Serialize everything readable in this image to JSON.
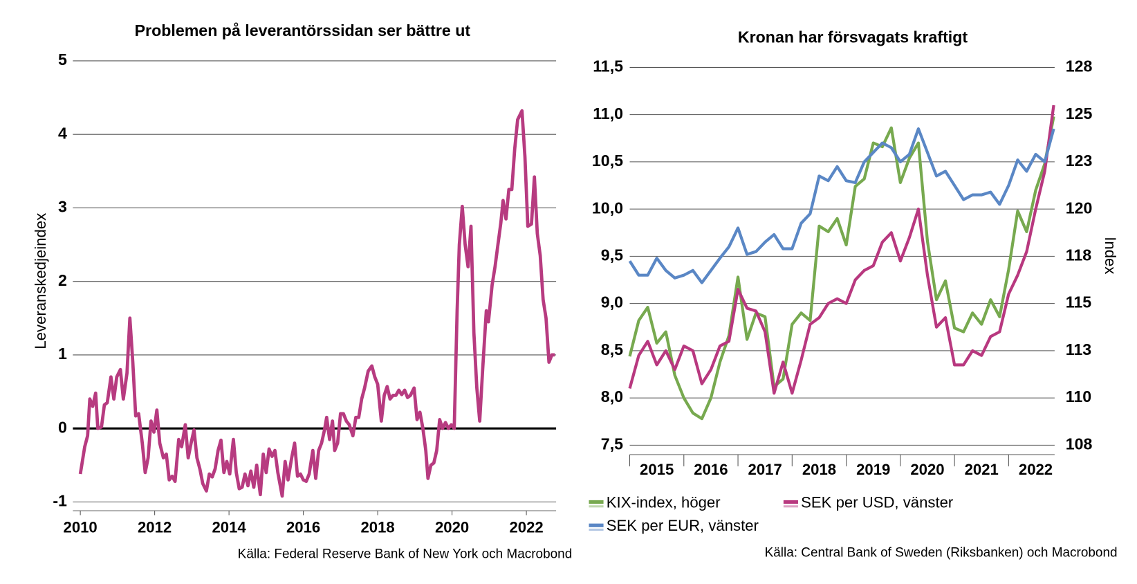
{
  "chart_data": [
    {
      "type": "line",
      "title": "Problemen på leverantörssidan ser bättre ut",
      "ylabel": "Leveranskedjeindex",
      "source": "Källa: Federal Reserve Bank of New York och Macrobond",
      "xlim": [
        2009.8,
        2022.8
      ],
      "xticks": [
        2010,
        2012,
        2014,
        2016,
        2018,
        2020,
        2022
      ],
      "ylim": [
        -1.12,
        5
      ],
      "yticks": [
        5,
        4,
        3,
        2,
        1,
        0,
        -1
      ],
      "grid": true,
      "color": "#b73b80",
      "x": [
        2010,
        2010.118,
        2010.196,
        2010.255,
        2010.333,
        2010.412,
        2010.471,
        2010.569,
        2010.647,
        2010.725,
        2010.824,
        2010.902,
        2010.98,
        2011.078,
        2011.157,
        2011.255,
        2011.333,
        2011.412,
        2011.49,
        2011.569,
        2011.667,
        2011.745,
        2011.824,
        2011.902,
        2011.98,
        2012.059,
        2012.137,
        2012.235,
        2012.314,
        2012.392,
        2012.471,
        2012.549,
        2012.647,
        2012.725,
        2012.824,
        2012.902,
        2012.98,
        2013.059,
        2013.137,
        2013.216,
        2013.294,
        2013.392,
        2013.471,
        2013.549,
        2013.627,
        2013.706,
        2013.784,
        2013.863,
        2013.941,
        2014.02,
        2014.118,
        2014.196,
        2014.275,
        2014.353,
        2014.431,
        2014.51,
        2014.588,
        2014.667,
        2014.745,
        2014.843,
        2014.922,
        2015,
        2015.078,
        2015.157,
        2015.235,
        2015.314,
        2015.431,
        2015.51,
        2015.588,
        2015.686,
        2015.765,
        2015.843,
        2015.922,
        2016,
        2016.078,
        2016.157,
        2016.255,
        2016.333,
        2016.412,
        2016.49,
        2016.569,
        2016.627,
        2016.706,
        2016.784,
        2016.843,
        2016.922,
        2017,
        2017.078,
        2017.157,
        2017.235,
        2017.333,
        2017.412,
        2017.49,
        2017.569,
        2017.647,
        2017.745,
        2017.843,
        2017.922,
        2018,
        2018.098,
        2018.176,
        2018.255,
        2018.333,
        2018.412,
        2018.49,
        2018.569,
        2018.647,
        2018.725,
        2018.804,
        2018.882,
        2018.98,
        2019.059,
        2019.137,
        2019.216,
        2019.294,
        2019.353,
        2019.431,
        2019.51,
        2019.588,
        2019.667,
        2019.745,
        2019.824,
        2019.902,
        2019.98,
        2020.059,
        2020.137,
        2020.196,
        2020.275,
        2020.353,
        2020.431,
        2020.51,
        2020.588,
        2020.667,
        2020.745,
        2020.824,
        2020.922,
        2020.98,
        2021.078,
        2021.157,
        2021.235,
        2021.314,
        2021.373,
        2021.451,
        2021.529,
        2021.608,
        2021.686,
        2021.765,
        2021.882,
        2021.961,
        2022.039,
        2022.137,
        2022.216,
        2022.294,
        2022.373,
        2022.451,
        2022.529,
        2022.608,
        2022.686,
        2022.765
      ],
      "values": [
        -0.62,
        -0.25,
        -0.1,
        0.4,
        0.3,
        0.48,
        0.0,
        0.02,
        0.32,
        0.35,
        0.7,
        0.4,
        0.7,
        0.8,
        0.4,
        0.75,
        1.5,
        0.9,
        0.17,
        0.2,
        -0.2,
        -0.6,
        -0.4,
        0.1,
        -0.05,
        0.25,
        -0.2,
        -0.4,
        -0.35,
        -0.7,
        -0.65,
        -0.72,
        -0.15,
        -0.25,
        0.05,
        -0.4,
        -0.2,
        -0.02,
        -0.4,
        -0.55,
        -0.75,
        -0.85,
        -0.62,
        -0.66,
        -0.55,
        -0.3,
        -0.16,
        -0.6,
        -0.45,
        -0.62,
        -0.15,
        -0.6,
        -0.82,
        -0.8,
        -0.62,
        -0.78,
        -0.58,
        -0.8,
        -0.5,
        -0.9,
        -0.35,
        -0.6,
        -0.28,
        -0.38,
        -0.3,
        -0.6,
        -0.92,
        -0.45,
        -0.7,
        -0.4,
        -0.2,
        -0.65,
        -0.62,
        -0.7,
        -0.72,
        -0.62,
        -0.3,
        -0.68,
        -0.3,
        -0.2,
        -0.02,
        0.15,
        -0.15,
        0.1,
        -0.3,
        -0.2,
        0.2,
        0.2,
        0.1,
        0.05,
        -0.1,
        0.15,
        0.15,
        0.4,
        0.55,
        0.78,
        0.85,
        0.7,
        0.6,
        0.1,
        0.45,
        0.57,
        0.4,
        0.45,
        0.45,
        0.52,
        0.46,
        0.52,
        0.42,
        0.45,
        0.55,
        0.12,
        0.22,
        0.0,
        -0.3,
        -0.68,
        -0.5,
        -0.47,
        -0.3,
        0.12,
        0.0,
        0.08,
        0.0,
        0.05,
        0.0,
        1.6,
        2.5,
        3.02,
        2.5,
        2.2,
        2.75,
        1.3,
        0.55,
        0.1,
        0.8,
        1.6,
        1.45,
        1.95,
        2.2,
        2.5,
        2.8,
        3.1,
        2.85,
        3.25,
        3.25,
        3.8,
        4.2,
        4.32,
        3.7,
        2.75,
        2.78,
        3.42,
        2.65,
        2.35,
        1.75,
        1.5,
        0.9,
        1.0,
        1.0
      ]
    },
    {
      "type": "line",
      "title": "Kronan har försvagats kraftigt",
      "y2label": "Index",
      "source": "Källa: Central Bank of Sweden (Riksbanken) och Macrobond",
      "legend": "bottom",
      "xlim": [
        2015,
        2022.85
      ],
      "xticks": [
        {
          "value": 2015.5,
          "label": "2015"
        },
        {
          "value": 2016.5,
          "label": "2016"
        },
        {
          "value": 2017.5,
          "label": "2017"
        },
        {
          "value": 2018.5,
          "label": "2018"
        },
        {
          "value": 2019.5,
          "label": "2019"
        },
        {
          "value": 2020.5,
          "label": "2020"
        },
        {
          "value": 2021.5,
          "label": "2021"
        },
        {
          "value": 2022.5,
          "label": "2022"
        }
      ],
      "xtick_marks": [
        2015,
        2016,
        2017,
        2018,
        2019,
        2020,
        2021,
        2022
      ],
      "ylim": [
        7.4,
        11.5
      ],
      "yticks": [
        {
          "value": 11.5,
          "label": "11,5"
        },
        {
          "value": 11,
          "label": "11,0"
        },
        {
          "value": 10.5,
          "label": "10,5"
        },
        {
          "value": 10,
          "label": "10,0"
        },
        {
          "value": 9.5,
          "label": "9,5"
        },
        {
          "value": 9,
          "label": "9,0"
        },
        {
          "value": 8.5,
          "label": "8,5"
        },
        {
          "value": 8,
          "label": "8,0"
        },
        {
          "value": 7.5,
          "label": "7,5"
        }
      ],
      "y2lim": [
        107,
        127.5
      ],
      "y2ticks": [
        {
          "value": 127.5,
          "label": "128"
        },
        125,
        {
          "value": 122.5,
          "label": "123"
        },
        120,
        {
          "value": 117.5,
          "label": "118"
        },
        115,
        {
          "value": 112.5,
          "label": "113"
        },
        110,
        {
          "value": 107.5,
          "label": "108"
        }
      ],
      "grid": true,
      "x": [
        2015,
        2015.167,
        2015.333,
        2015.5,
        2015.667,
        2015.833,
        2016,
        2016.167,
        2016.333,
        2016.5,
        2016.667,
        2016.833,
        2017,
        2017.167,
        2017.333,
        2017.5,
        2017.667,
        2017.833,
        2018,
        2018.167,
        2018.333,
        2018.5,
        2018.667,
        2018.833,
        2019,
        2019.167,
        2019.333,
        2019.5,
        2019.667,
        2019.833,
        2020,
        2020.167,
        2020.333,
        2020.5,
        2020.667,
        2020.833,
        2021,
        2021.167,
        2021.333,
        2021.5,
        2021.667,
        2021.833,
        2022,
        2022.167,
        2022.333,
        2022.5,
        2022.667,
        2022.833
      ],
      "series": [
        {
          "name": "KIX-index, höger",
          "color": "#77a94f",
          "axis": "y2",
          "values": [
            112.2,
            114.1,
            114.8,
            112.9,
            113.5,
            111.2,
            110.0,
            109.2,
            108.9,
            110.0,
            111.9,
            113.3,
            116.4,
            113.1,
            114.5,
            114.3,
            110.6,
            111.0,
            113.9,
            114.5,
            114.1,
            119.1,
            118.8,
            119.5,
            118.1,
            121.2,
            121.6,
            123.5,
            123.3,
            124.3,
            121.4,
            122.7,
            123.5,
            118.3,
            115.2,
            116.2,
            113.7,
            113.5,
            114.5,
            113.9,
            115.2,
            114.3,
            116.8,
            119.9,
            118.8,
            121.0,
            122.4,
            124.9
          ]
        },
        {
          "name": "SEK per USD, vänster",
          "color": "#b8387f",
          "values": [
            8.1,
            8.45,
            8.6,
            8.35,
            8.5,
            8.3,
            8.55,
            8.5,
            8.15,
            8.3,
            8.55,
            8.6,
            9.15,
            8.95,
            8.92,
            8.7,
            8.05,
            8.38,
            8.05,
            8.4,
            8.78,
            8.85,
            9.0,
            9.05,
            9.0,
            9.25,
            9.35,
            9.4,
            9.65,
            9.75,
            9.45,
            9.7,
            10.0,
            9.3,
            8.75,
            8.85,
            8.35,
            8.35,
            8.5,
            8.45,
            8.65,
            8.7,
            9.1,
            9.3,
            9.55,
            10.0,
            10.4,
            11.1
          ]
        },
        {
          "name": "SEK per EUR, vänster",
          "color": "#5a87c5",
          "values": [
            9.45,
            9.3,
            9.3,
            9.48,
            9.35,
            9.27,
            9.3,
            9.35,
            9.22,
            9.35,
            9.48,
            9.6,
            9.8,
            9.52,
            9.55,
            9.65,
            9.73,
            9.58,
            9.58,
            9.85,
            9.95,
            10.35,
            10.3,
            10.45,
            10.3,
            10.28,
            10.5,
            10.6,
            10.7,
            10.65,
            10.5,
            10.58,
            10.85,
            10.6,
            10.35,
            10.4,
            10.25,
            10.1,
            10.15,
            10.15,
            10.18,
            10.05,
            10.25,
            10.52,
            10.4,
            10.58,
            10.5,
            10.85
          ]
        }
      ]
    }
  ]
}
